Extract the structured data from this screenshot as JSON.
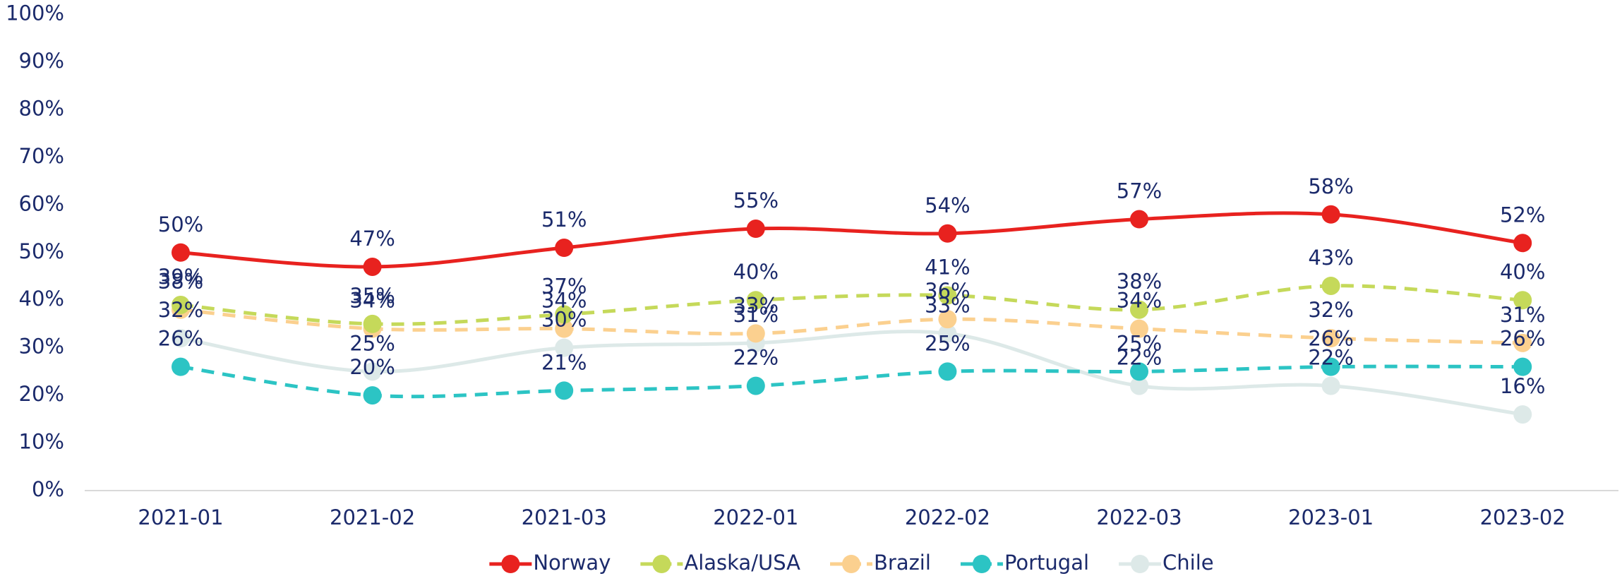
{
  "chart_data": {
    "type": "line",
    "categories": [
      "2021-01",
      "2021-02",
      "2021-03",
      "2022-01",
      "2022-02",
      "2022-03",
      "2023-01",
      "2023-02"
    ],
    "ylim": [
      0,
      100
    ],
    "yticks": [
      {
        "value": 0,
        "label": "0%"
      },
      {
        "value": 10,
        "label": "10%"
      },
      {
        "value": 20,
        "label": "20%"
      },
      {
        "value": 30,
        "label": "30%"
      },
      {
        "value": 40,
        "label": "40%"
      },
      {
        "value": 50,
        "label": "50%"
      },
      {
        "value": 60,
        "label": "60%"
      },
      {
        "value": 70,
        "label": "70%"
      },
      {
        "value": 80,
        "label": "80%"
      },
      {
        "value": 90,
        "label": "90%"
      },
      {
        "value": 100,
        "label": "100%"
      }
    ],
    "legend": "bottom",
    "series": [
      {
        "name": "Norway",
        "color": "#e8221f",
        "dashed": false,
        "values": [
          50,
          47,
          51,
          55,
          54,
          57,
          58,
          52
        ],
        "value_labels": [
          "50%",
          "47%",
          "51%",
          "55%",
          "54%",
          "57%",
          "58%",
          "52%"
        ]
      },
      {
        "name": "Alaska/USA",
        "color": "#c5d95a",
        "dashed": true,
        "values": [
          39,
          35,
          37,
          40,
          41,
          38,
          43,
          40
        ],
        "value_labels": [
          "39%",
          "35%",
          "37%",
          "40%",
          "41%",
          "38%",
          "43%",
          "40%"
        ]
      },
      {
        "name": "Brazil",
        "color": "#fbd08f",
        "dashed": true,
        "values": [
          38,
          34,
          34,
          33,
          36,
          34,
          32,
          31
        ],
        "value_labels": [
          "38%",
          "34%",
          "34%",
          "33%",
          "36%",
          "34%",
          "32%",
          "31%"
        ]
      },
      {
        "name": "Portugal",
        "color": "#2cc4c4",
        "dashed": true,
        "values": [
          26,
          20,
          21,
          22,
          25,
          25,
          26,
          26
        ],
        "value_labels": [
          "26%",
          "20%",
          "21%",
          "22%",
          "25%",
          "25%",
          "26%",
          "26%"
        ]
      },
      {
        "name": "Chile",
        "color": "#dde9e8",
        "dashed": false,
        "values": [
          32,
          25,
          30,
          31,
          33,
          22,
          22,
          16
        ],
        "value_labels": [
          "32%",
          "25%",
          "30%",
          "31%",
          "33%",
          "22%",
          "22%",
          "16%"
        ]
      }
    ]
  }
}
